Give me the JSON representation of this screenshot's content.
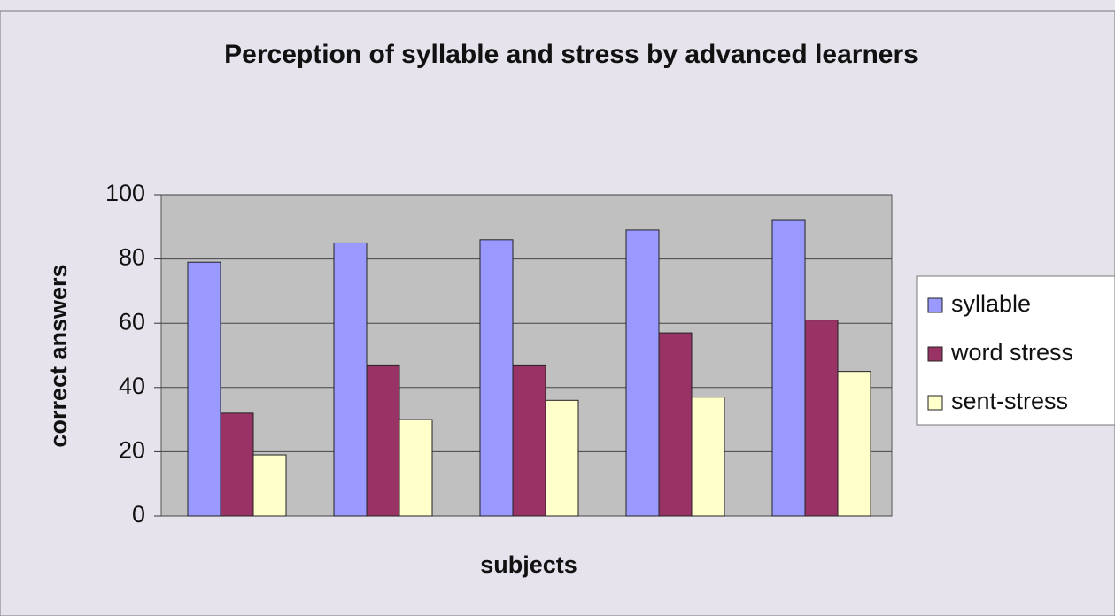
{
  "chart_data": {
    "type": "bar",
    "title": "Perception of syllable and stress by advanced learners",
    "x_label": "subjects",
    "y_label": "correct answers",
    "categories": [
      null,
      null,
      null,
      null,
      null
    ],
    "series": [
      {
        "name": "syllable",
        "color": "#9999ff",
        "values": [
          79,
          85,
          86,
          89,
          92
        ]
      },
      {
        "name": "word stress",
        "color": "#993366",
        "values": [
          32,
          47,
          47,
          57,
          61
        ]
      },
      {
        "name": "sent-stress",
        "color": "#ffffcc",
        "values": [
          19,
          30,
          36,
          37,
          45
        ]
      }
    ],
    "ylim": [
      0,
      100
    ],
    "yticks": [
      0,
      20,
      40,
      60,
      80,
      100
    ],
    "grid": true,
    "legend": "right"
  }
}
